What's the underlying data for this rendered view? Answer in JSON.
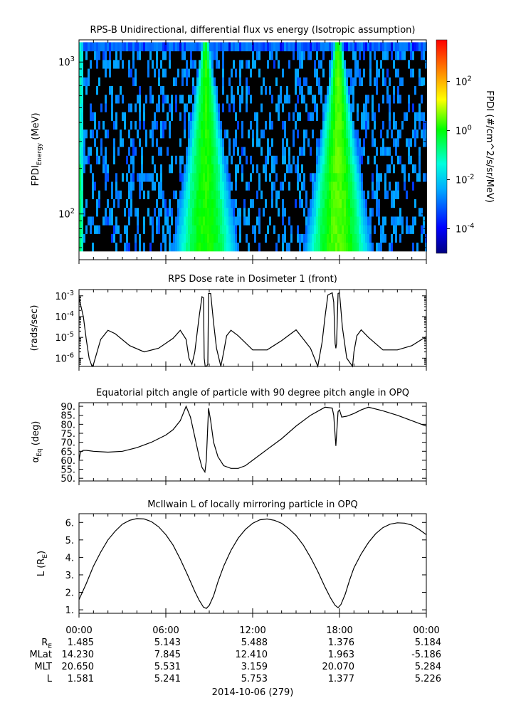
{
  "colorbar": {
    "label": "FPDI (#/cm^2/s/sr/MeV)",
    "ticks": [
      {
        "base": "10",
        "exp": "2",
        "value": 100
      },
      {
        "base": "10",
        "exp": "0",
        "value": 1
      },
      {
        "base": "10",
        "exp": "-2",
        "value": 0.01
      },
      {
        "base": "10",
        "exp": "-4",
        "value": 0.0001
      }
    ],
    "range": [
      1e-05,
      5000
    ],
    "colors": [
      "#000080",
      "#0000ff",
      "#00aaff",
      "#00ffdd",
      "#00ff00",
      "#ffff00",
      "#ff8000",
      "#ff0000"
    ]
  },
  "time_axis": {
    "ticks": [
      "00:00",
      "06:00",
      "12:00",
      "18:00",
      "00:00"
    ],
    "date": "2014-10-06 (279)"
  },
  "ephemeris": {
    "rows": [
      {
        "label": "R",
        "sub": "E",
        "values": [
          "1.485",
          "5.143",
          "5.488",
          "1.376",
          "5.184"
        ]
      },
      {
        "label": "MLat",
        "sub": "",
        "values": [
          "14.230",
          "7.845",
          "12.410",
          "1.963",
          "-5.186"
        ]
      },
      {
        "label": "MLT",
        "sub": "",
        "values": [
          "20.650",
          "5.531",
          "3.159",
          "20.070",
          "5.284"
        ]
      },
      {
        "label": "L",
        "sub": "",
        "values": [
          "1.581",
          "5.241",
          "5.753",
          "1.377",
          "5.226"
        ]
      }
    ]
  },
  "chart_data": [
    {
      "type": "heatmap",
      "title": "RPS-B  Unidirectional, differential flux vs energy (Isotropic assumption)",
      "ylabel": "FPDI",
      "ylabel_sub": "Energy",
      "ylabel_unit": "(MeV)",
      "yscale": "log",
      "ylim": [
        50,
        1400
      ],
      "yticks": [
        {
          "base": "10",
          "exp": "2",
          "value": 100
        },
        {
          "base": "10",
          "exp": "3",
          "value": 1000
        }
      ],
      "xlim_hours": [
        0,
        24
      ],
      "energy_range_mev": [
        57,
        1350
      ],
      "peaks": [
        {
          "center_hour": 8.75,
          "flux": 1.5
        },
        {
          "center_hour": 17.9,
          "flux": 3
        }
      ]
    },
    {
      "type": "line",
      "title": "RPS  Dose rate in Dosimeter 1 (front)",
      "ylabel": "(rads/sec)",
      "yscale": "log",
      "ylim": [
        4e-07,
        0.002
      ],
      "yticks": [
        {
          "base": "10",
          "exp": "-3",
          "value": 0.001
        },
        {
          "base": "10",
          "exp": "-4",
          "value": 0.0001
        },
        {
          "base": "10",
          "exp": "-5",
          "value": 1e-05
        },
        {
          "base": "10",
          "exp": "-6",
          "value": 1e-06
        }
      ],
      "x_hours": [
        0,
        0.3,
        0.5,
        0.7,
        0.9,
        1.0,
        1.5,
        2.0,
        2.5,
        3.5,
        4.5,
        5.5,
        6.5,
        7.0,
        7.4,
        7.6,
        7.8,
        8.0,
        8.3,
        8.5,
        8.6,
        8.65,
        8.72,
        8.8,
        8.9,
        8.95,
        9.1,
        9.3,
        9.5,
        9.8,
        10.0,
        10.2,
        10.5,
        11.0,
        12.0,
        13.0,
        14.0,
        15.0,
        16.0,
        16.5,
        16.8,
        17.0,
        17.2,
        17.5,
        17.6,
        17.7,
        17.75,
        17.8,
        17.9,
        18.0,
        18.2,
        18.5,
        18.9,
        19.0,
        19.2,
        19.5,
        20.0,
        21.0,
        22.0,
        23.0,
        24.0
      ],
      "values": [
        0.0008,
        0.0001,
        8e-06,
        1e-06,
        4e-07,
        5e-07,
        8e-06,
        2.2e-05,
        1.5e-05,
        4e-06,
        2e-06,
        3e-06,
        9e-06,
        2.2e-05,
        8e-06,
        1e-06,
        5e-07,
        2e-06,
        0.0001,
        0.0009,
        0.0008,
        1e-06,
        4e-07,
        4e-07,
        5e-07,
        0.0013,
        0.0013,
        5e-05,
        3e-06,
        4e-07,
        2e-06,
        1.2e-05,
        2.2e-05,
        1.2e-05,
        2.5e-06,
        2.5e-06,
        7e-06,
        2.3e-05,
        3e-06,
        4e-07,
        6e-06,
        0.0001,
        0.0011,
        0.0014,
        0.0005,
        5e-06,
        3e-06,
        5e-06,
        0.0013,
        0.0014,
        3e-05,
        1e-06,
        4e-07,
        2e-06,
        1.2e-05,
        2.3e-05,
        1e-05,
        2.5e-06,
        2.5e-06,
        4e-06,
        1.1e-05
      ]
    },
    {
      "type": "line",
      "title": "Equatorial pitch angle of particle with 90 degree pitch angle in OPQ",
      "ylabel": "α",
      "ylabel_sub": "Eq",
      "ylabel_unit": "(deg)",
      "ylim": [
        48.5,
        92
      ],
      "yticks": [
        90,
        85,
        80,
        75,
        70,
        65,
        60,
        55,
        50
      ],
      "ytick_labels": [
        "90.",
        "85.",
        "80.",
        "75.",
        "70.",
        "65.",
        "60.",
        "55.",
        "50."
      ],
      "x_hours": [
        0,
        0.1,
        0.3,
        0.5,
        1.0,
        2.0,
        3.0,
        4.0,
        5.0,
        6.0,
        6.5,
        7.0,
        7.4,
        7.7,
        8.0,
        8.3,
        8.5,
        8.7,
        8.8,
        8.95,
        9.1,
        9.3,
        9.6,
        10.0,
        10.5,
        11.0,
        11.5,
        12.0,
        13.0,
        14.0,
        15.0,
        16.0,
        17.0,
        17.5,
        17.6,
        17.75,
        17.9,
        18.0,
        18.15,
        18.5,
        19.0,
        19.5,
        20.0,
        21.0,
        22.0,
        23.0,
        24.0
      ],
      "values": [
        60,
        64.5,
        65.5,
        65.5,
        65,
        64.5,
        65,
        67,
        70,
        74,
        77,
        82,
        90,
        84,
        73,
        62,
        56,
        53.5,
        60,
        89,
        82,
        70,
        62,
        57,
        55.5,
        55.5,
        57,
        60,
        66,
        72,
        79,
        85,
        89.5,
        89,
        85,
        68,
        87,
        88,
        84,
        84.5,
        86,
        88,
        89.5,
        87.5,
        85,
        82,
        79
      ]
    },
    {
      "type": "line",
      "title": "McIlwain L of locally mirroring particle in OPQ",
      "ylabel": "L",
      "ylabel_sub": "E",
      "ylim": [
        0.8,
        6.5
      ],
      "yticks": [
        6,
        5,
        4,
        3,
        2,
        1
      ],
      "ytick_labels": [
        "6.",
        "5.",
        "4.",
        "3.",
        "2.",
        "1."
      ],
      "x_hours": [
        0,
        0.5,
        1.0,
        1.5,
        2.0,
        2.5,
        3.0,
        3.5,
        4.0,
        4.5,
        5.0,
        5.5,
        6.0,
        6.5,
        7.0,
        7.5,
        8.0,
        8.3,
        8.6,
        8.8,
        9.0,
        9.3,
        9.6,
        10.0,
        10.5,
        11.0,
        11.5,
        12.0,
        12.5,
        13.0,
        13.5,
        14.0,
        14.5,
        15.0,
        15.5,
        16.0,
        16.5,
        17.0,
        17.4,
        17.7,
        17.9,
        18.1,
        18.4,
        18.7,
        19.0,
        19.5,
        20.0,
        20.5,
        21.0,
        21.5,
        22.0,
        22.5,
        23.0,
        23.5,
        24.0
      ],
      "values": [
        1.58,
        2.5,
        3.5,
        4.3,
        5.0,
        5.5,
        5.9,
        6.12,
        6.22,
        6.2,
        6.05,
        5.75,
        5.3,
        4.7,
        3.9,
        3.0,
        2.05,
        1.55,
        1.15,
        1.08,
        1.25,
        1.8,
        2.6,
        3.5,
        4.4,
        5.1,
        5.6,
        5.95,
        6.15,
        6.2,
        6.12,
        5.95,
        5.65,
        5.25,
        4.7,
        4.0,
        3.2,
        2.3,
        1.65,
        1.25,
        1.12,
        1.3,
        1.9,
        2.7,
        3.4,
        4.2,
        4.85,
        5.35,
        5.7,
        5.9,
        5.98,
        5.96,
        5.85,
        5.6,
        5.3
      ]
    }
  ]
}
